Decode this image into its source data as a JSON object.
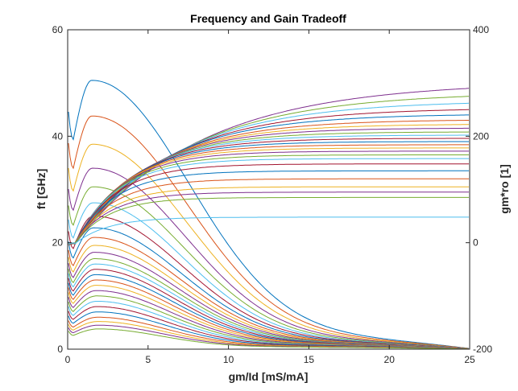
{
  "chart_data": {
    "type": "line",
    "title": "Frequency and Gain Tradeoff",
    "xlabel": "gm/Id [mS/mA]",
    "ylabel_left": "ft [GHz]",
    "ylabel_right": "gm*ro [1]",
    "xlim": [
      0,
      25
    ],
    "ylim_left": [
      0,
      60
    ],
    "ylim_right": [
      -200,
      400
    ],
    "x_ticks": [
      "0",
      "5",
      "10",
      "15",
      "20",
      "25"
    ],
    "y_ticks_left": [
      "0",
      "20",
      "40",
      "60"
    ],
    "y_ticks_right": [
      "-200",
      "0",
      "200",
      "400"
    ],
    "grid": false,
    "legend": "none",
    "colors": [
      "#0072BD",
      "#D95319",
      "#EDB120",
      "#7E2F8E",
      "#77AC30",
      "#4DBEEE",
      "#A2142F"
    ],
    "ft_series": {
      "axis": "left",
      "peaks": [
        50.5,
        43.8,
        38.5,
        34.0,
        30.5,
        27.5,
        25.0,
        22.8,
        21.0,
        19.5,
        18.2,
        17.0,
        16.0,
        15.0,
        14.0,
        13.0,
        12.0,
        11.0,
        10.0,
        9.0,
        8.0,
        7.0,
        6.0,
        5.2,
        4.5,
        3.8
      ]
    },
    "gain_series": {
      "axis": "right",
      "end_values": [
        290,
        275,
        262,
        250,
        240,
        230,
        222,
        215,
        208,
        202,
        196,
        190,
        184,
        178,
        172,
        165,
        158,
        148,
        135,
        120,
        105,
        95,
        85,
        48
      ]
    }
  }
}
